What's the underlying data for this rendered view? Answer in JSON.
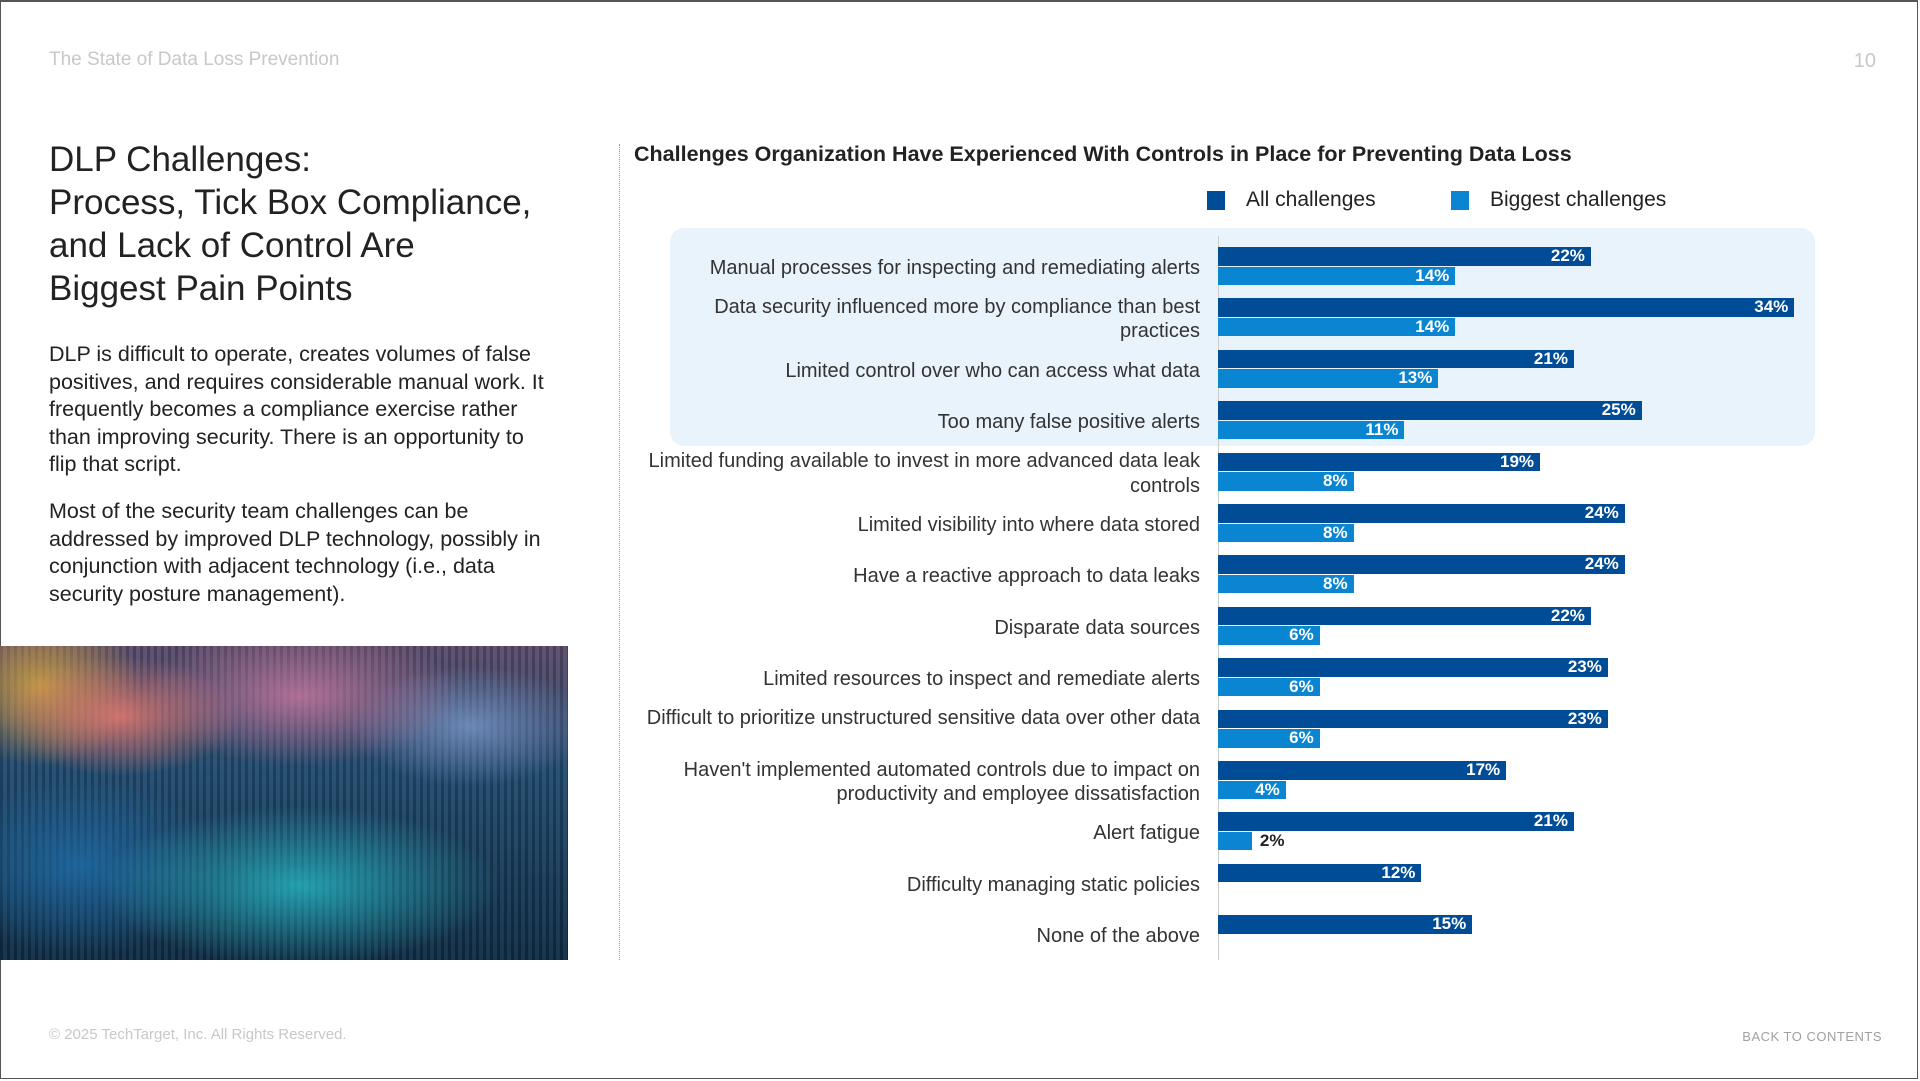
{
  "header": {
    "report_title": "The State of Data Loss Prevention",
    "page_number": "10"
  },
  "left": {
    "title_lines": [
      "DLP Challenges:",
      "Process, Tick Box Compliance,",
      "and Lack of Control Are",
      "Biggest Pain Points"
    ],
    "paragraph1": "DLP is difficult to operate, creates volumes of false positives, and requires considerable manual work. It frequently becomes a compliance exercise rather than improving security. There is an opportunity to flip that script.",
    "paragraph2": "Most of the security team challenges can be addressed by improved DLP technology, possibly in conjunction with adjacent technology (i.e., data security posture management)."
  },
  "chart_data": {
    "type": "bar",
    "orientation": "horizontal",
    "title": "Challenges Organization Have Experienced With Controls in Place for Preventing Data Loss",
    "legend_position": "top",
    "highlighted_rows": 4,
    "colors": {
      "all": "#004c97",
      "biggest": "#0a85d1",
      "highlight_bg": "#e9f3fc"
    },
    "categories": [
      "Manual processes for inspecting and remediating alerts",
      "Data security influenced more by compliance than best practices",
      "Limited control over who can access what data",
      "Too many false positive alerts",
      "Limited funding available to invest in more advanced data leak controls",
      "Limited visibility into where data stored",
      "Have a reactive approach to data leaks",
      "Disparate data sources",
      "Limited resources to inspect and remediate alerts",
      "Difficult to prioritize unstructured sensitive data over other data",
      "Haven't implemented automated controls due to impact on productivity and employee dissatisfaction",
      "Alert fatigue",
      "Difficulty managing static policies",
      "None of the above"
    ],
    "series": [
      {
        "name": "All challenges",
        "values": [
          22,
          34,
          21,
          25,
          19,
          24,
          24,
          22,
          23,
          23,
          17,
          21,
          12,
          15
        ]
      },
      {
        "name": "Biggest challenges",
        "values": [
          14,
          14,
          13,
          11,
          8,
          8,
          8,
          6,
          6,
          6,
          4,
          2,
          null,
          null
        ]
      }
    ],
    "unit": "%"
  },
  "footer": {
    "copyright": "© 2025 TechTarget, Inc. All Rights Reserved.",
    "back_link": "BACK TO CONTENTS"
  }
}
